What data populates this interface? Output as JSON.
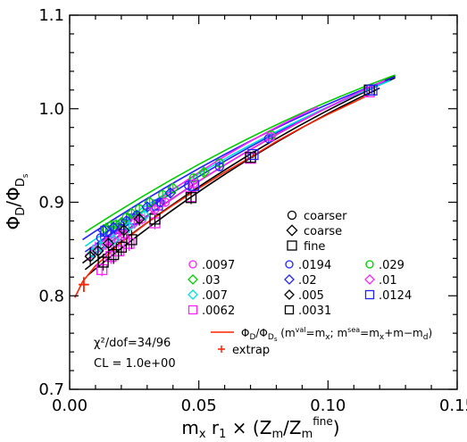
{
  "chart_data": {
    "type": "scatter",
    "xlabel": "m_x r_1 × (Z_m/Z_m^fine)",
    "ylabel": "Φ_D/Φ_Ds",
    "xlim": [
      0.0,
      0.15
    ],
    "ylim": [
      0.7,
      1.1
    ],
    "x_ticks": [
      "0.00",
      "0.05",
      "0.10",
      "0.15"
    ],
    "y_ticks": [
      "0.7",
      "0.8",
      "0.9",
      "1.0",
      "1.1"
    ],
    "ensemble_legend": [
      {
        "symbol": "circle",
        "label": "coarser"
      },
      {
        "symbol": "diamond",
        "label": "coarse"
      },
      {
        "symbol": "square",
        "label": "fine"
      }
    ],
    "mass_legend": [
      {
        "label": ".0097",
        "color": "#ff22ff",
        "symbol": "circle"
      },
      {
        "label": ".0194",
        "color": "#2222ff",
        "symbol": "circle"
      },
      {
        "label": ".029",
        "color": "#00cc00",
        "symbol": "circle"
      },
      {
        "label": ".03",
        "color": "#00cc00",
        "symbol": "diamond"
      },
      {
        "label": ".02",
        "color": "#2222ff",
        "symbol": "diamond"
      },
      {
        "label": ".01",
        "color": "#ff22ff",
        "symbol": "diamond"
      },
      {
        "label": ".007",
        "color": "#00dddd",
        "symbol": "diamond"
      },
      {
        "label": ".005",
        "color": "#000000",
        "symbol": "diamond"
      },
      {
        "label": ".0124",
        "color": "#2222ff",
        "symbol": "square"
      },
      {
        "label": ".0062",
        "color": "#ff22ff",
        "symbol": "square"
      },
      {
        "label": ".0031",
        "color": "#000000",
        "symbol": "square"
      }
    ],
    "physical_curve_label": "Φ_D/Φ_Ds (m^val=m_x; m^sea=m_x+m−m_d)",
    "physical_curve_color": "#ff2200",
    "extrap_label": "extrap",
    "extrap_point": {
      "x": 0.0055,
      "y": 0.812,
      "yerr": 0.008,
      "xerr": 0.002
    },
    "fit_annotation_1": "χ²/dof=34/96",
    "fit_annotation_2": "CL = 1.0e+00",
    "fit_curves": [
      {
        "color": "#000000",
        "x0": 0.005,
        "y0": 0.835,
        "x1": 0.126,
        "y1": 1.035
      },
      {
        "color": "#000000",
        "x0": 0.006,
        "y0": 0.828,
        "x1": 0.126,
        "y1": 1.033
      },
      {
        "color": "#000000",
        "x0": 0.007,
        "y0": 0.822,
        "x1": 0.12,
        "y1": 1.022
      },
      {
        "color": "#2222ff",
        "x0": 0.005,
        "y0": 0.86,
        "x1": 0.126,
        "y1": 1.034
      },
      {
        "color": "#2222ff",
        "x0": 0.006,
        "y0": 0.847,
        "x1": 0.122,
        "y1": 1.028
      },
      {
        "color": "#00cc00",
        "x0": 0.006,
        "y0": 0.868,
        "x1": 0.126,
        "y1": 1.036
      },
      {
        "color": "#00dddd",
        "x0": 0.006,
        "y0": 0.853,
        "x1": 0.124,
        "y1": 1.03
      },
      {
        "color": "#ff22ff",
        "x0": 0.006,
        "y0": 0.843,
        "x1": 0.096,
        "y1": 1.002
      },
      {
        "color": "#ff22ff",
        "x0": 0.007,
        "y0": 0.838,
        "x1": 0.122,
        "y1": 1.03
      }
    ],
    "physical_curve": [
      {
        "x": 0.002,
        "y": 0.798
      },
      {
        "x": 0.005,
        "y": 0.815
      },
      {
        "x": 0.01,
        "y": 0.832
      },
      {
        "x": 0.02,
        "y": 0.857
      },
      {
        "x": 0.03,
        "y": 0.878
      },
      {
        "x": 0.04,
        "y": 0.897
      },
      {
        "x": 0.05,
        "y": 0.915
      },
      {
        "x": 0.06,
        "y": 0.932
      },
      {
        "x": 0.07,
        "y": 0.948
      },
      {
        "x": 0.08,
        "y": 0.965
      },
      {
        "x": 0.09,
        "y": 0.98
      },
      {
        "x": 0.1,
        "y": 0.994
      },
      {
        "x": 0.11,
        "y": 1.007
      },
      {
        "x": 0.116,
        "y": 1.015
      }
    ],
    "points": [
      {
        "x": 0.0125,
        "y": 0.828,
        "err": 0.007,
        "color": "#ff22ff",
        "symbol": "square"
      },
      {
        "x": 0.016,
        "y": 0.842,
        "err": 0.008,
        "color": "#ff22ff",
        "symbol": "square"
      },
      {
        "x": 0.019,
        "y": 0.848,
        "err": 0.007,
        "color": "#ff22ff",
        "symbol": "square"
      },
      {
        "x": 0.023,
        "y": 0.856,
        "err": 0.008,
        "color": "#ff22ff",
        "symbol": "square"
      },
      {
        "x": 0.033,
        "y": 0.878,
        "err": 0.007,
        "color": "#ff22ff",
        "symbol": "square"
      },
      {
        "x": 0.047,
        "y": 0.906,
        "err": 0.006,
        "color": "#ff22ff",
        "symbol": "square"
      },
      {
        "x": 0.07,
        "y": 0.947,
        "err": 0.005,
        "color": "#ff22ff",
        "symbol": "square"
      },
      {
        "x": 0.116,
        "y": 1.018,
        "err": 0.004,
        "color": "#ff22ff",
        "symbol": "square"
      },
      {
        "x": 0.013,
        "y": 0.836,
        "err": 0.009,
        "color": "#000000",
        "symbol": "square"
      },
      {
        "x": 0.017,
        "y": 0.844,
        "err": 0.01,
        "color": "#000000",
        "symbol": "square"
      },
      {
        "x": 0.02,
        "y": 0.852,
        "err": 0.009,
        "color": "#000000",
        "symbol": "square"
      },
      {
        "x": 0.024,
        "y": 0.86,
        "err": 0.01,
        "color": "#000000",
        "symbol": "square"
      },
      {
        "x": 0.033,
        "y": 0.882,
        "err": 0.008,
        "color": "#000000",
        "symbol": "square"
      },
      {
        "x": 0.047,
        "y": 0.905,
        "err": 0.007,
        "color": "#000000",
        "symbol": "square"
      },
      {
        "x": 0.07,
        "y": 0.948,
        "err": 0.006,
        "color": "#000000",
        "symbol": "square"
      },
      {
        "x": 0.116,
        "y": 1.02,
        "err": 0.004,
        "color": "#000000",
        "symbol": "square"
      },
      {
        "x": 0.014,
        "y": 0.869,
        "err": 0.007,
        "color": "#2222ff",
        "symbol": "square"
      },
      {
        "x": 0.018,
        "y": 0.872,
        "err": 0.007,
        "color": "#2222ff",
        "symbol": "square"
      },
      {
        "x": 0.021,
        "y": 0.876,
        "err": 0.006,
        "color": "#2222ff",
        "symbol": "square"
      },
      {
        "x": 0.025,
        "y": 0.882,
        "err": 0.006,
        "color": "#2222ff",
        "symbol": "square"
      },
      {
        "x": 0.034,
        "y": 0.897,
        "err": 0.005,
        "color": "#2222ff",
        "symbol": "square"
      },
      {
        "x": 0.048,
        "y": 0.918,
        "err": 0.005,
        "color": "#2222ff",
        "symbol": "square"
      },
      {
        "x": 0.071,
        "y": 0.951,
        "err": 0.004,
        "color": "#2222ff",
        "symbol": "square"
      },
      {
        "x": 0.117,
        "y": 1.02,
        "err": 0.004,
        "color": "#2222ff",
        "symbol": "square"
      },
      {
        "x": 0.014,
        "y": 0.872,
        "err": 0.006,
        "color": "#00cc00",
        "symbol": "circle"
      },
      {
        "x": 0.018,
        "y": 0.876,
        "err": 0.006,
        "color": "#00cc00",
        "symbol": "circle"
      },
      {
        "x": 0.022,
        "y": 0.884,
        "err": 0.005,
        "color": "#00cc00",
        "symbol": "circle"
      },
      {
        "x": 0.027,
        "y": 0.893,
        "err": 0.005,
        "color": "#00cc00",
        "symbol": "circle"
      },
      {
        "x": 0.036,
        "y": 0.908,
        "err": 0.005,
        "color": "#00cc00",
        "symbol": "circle"
      },
      {
        "x": 0.048,
        "y": 0.926,
        "err": 0.004,
        "color": "#00cc00",
        "symbol": "circle"
      },
      {
        "x": 0.058,
        "y": 0.942,
        "err": 0.004,
        "color": "#00cc00",
        "symbol": "circle"
      },
      {
        "x": 0.078,
        "y": 0.972,
        "err": 0.004,
        "color": "#00cc00",
        "symbol": "circle"
      },
      {
        "x": 0.016,
        "y": 0.875,
        "err": 0.006,
        "color": "#00cc00",
        "symbol": "diamond"
      },
      {
        "x": 0.02,
        "y": 0.878,
        "err": 0.006,
        "color": "#00cc00",
        "symbol": "diamond"
      },
      {
        "x": 0.024,
        "y": 0.888,
        "err": 0.005,
        "color": "#00cc00",
        "symbol": "diamond"
      },
      {
        "x": 0.031,
        "y": 0.9,
        "err": 0.005,
        "color": "#00cc00",
        "symbol": "diamond"
      },
      {
        "x": 0.04,
        "y": 0.915,
        "err": 0.004,
        "color": "#00cc00",
        "symbol": "diamond"
      },
      {
        "x": 0.052,
        "y": 0.932,
        "err": 0.004,
        "color": "#00cc00",
        "symbol": "diamond"
      },
      {
        "x": 0.012,
        "y": 0.862,
        "err": 0.007,
        "color": "#2222ff",
        "symbol": "circle"
      },
      {
        "x": 0.016,
        "y": 0.866,
        "err": 0.007,
        "color": "#2222ff",
        "symbol": "circle"
      },
      {
        "x": 0.02,
        "y": 0.872,
        "err": 0.006,
        "color": "#2222ff",
        "symbol": "circle"
      },
      {
        "x": 0.026,
        "y": 0.886,
        "err": 0.006,
        "color": "#2222ff",
        "symbol": "circle"
      },
      {
        "x": 0.035,
        "y": 0.9,
        "err": 0.005,
        "color": "#2222ff",
        "symbol": "circle"
      },
      {
        "x": 0.046,
        "y": 0.918,
        "err": 0.005,
        "color": "#2222ff",
        "symbol": "circle"
      },
      {
        "x": 0.058,
        "y": 0.938,
        "err": 0.004,
        "color": "#2222ff",
        "symbol": "circle"
      },
      {
        "x": 0.077,
        "y": 0.968,
        "err": 0.004,
        "color": "#2222ff",
        "symbol": "circle"
      },
      {
        "x": 0.013,
        "y": 0.87,
        "err": 0.006,
        "color": "#2222ff",
        "symbol": "diamond"
      },
      {
        "x": 0.017,
        "y": 0.873,
        "err": 0.006,
        "color": "#2222ff",
        "symbol": "diamond"
      },
      {
        "x": 0.022,
        "y": 0.88,
        "err": 0.005,
        "color": "#2222ff",
        "symbol": "diamond"
      },
      {
        "x": 0.03,
        "y": 0.895,
        "err": 0.005,
        "color": "#2222ff",
        "symbol": "diamond"
      },
      {
        "x": 0.039,
        "y": 0.91,
        "err": 0.005,
        "color": "#2222ff",
        "symbol": "diamond"
      },
      {
        "x": 0.012,
        "y": 0.852,
        "err": 0.008,
        "color": "#ff22ff",
        "symbol": "circle"
      },
      {
        "x": 0.016,
        "y": 0.858,
        "err": 0.007,
        "color": "#ff22ff",
        "symbol": "circle"
      },
      {
        "x": 0.021,
        "y": 0.866,
        "err": 0.007,
        "color": "#ff22ff",
        "symbol": "circle"
      },
      {
        "x": 0.028,
        "y": 0.882,
        "err": 0.006,
        "color": "#ff22ff",
        "symbol": "circle"
      },
      {
        "x": 0.037,
        "y": 0.9,
        "err": 0.005,
        "color": "#ff22ff",
        "symbol": "circle"
      },
      {
        "x": 0.048,
        "y": 0.92,
        "err": 0.005,
        "color": "#ff22ff",
        "symbol": "circle"
      },
      {
        "x": 0.078,
        "y": 0.97,
        "err": 0.004,
        "color": "#ff22ff",
        "symbol": "circle"
      },
      {
        "x": 0.01,
        "y": 0.85,
        "err": 0.008,
        "color": "#ff22ff",
        "symbol": "diamond"
      },
      {
        "x": 0.014,
        "y": 0.856,
        "err": 0.007,
        "color": "#ff22ff",
        "symbol": "diamond"
      },
      {
        "x": 0.019,
        "y": 0.864,
        "err": 0.007,
        "color": "#ff22ff",
        "symbol": "diamond"
      },
      {
        "x": 0.025,
        "y": 0.878,
        "err": 0.006,
        "color": "#ff22ff",
        "symbol": "diamond"
      },
      {
        "x": 0.033,
        "y": 0.892,
        "err": 0.006,
        "color": "#ff22ff",
        "symbol": "diamond"
      },
      {
        "x": 0.009,
        "y": 0.846,
        "err": 0.009,
        "color": "#00dddd",
        "symbol": "diamond"
      },
      {
        "x": 0.012,
        "y": 0.853,
        "err": 0.008,
        "color": "#00dddd",
        "symbol": "diamond"
      },
      {
        "x": 0.017,
        "y": 0.86,
        "err": 0.007,
        "color": "#00dddd",
        "symbol": "diamond"
      },
      {
        "x": 0.023,
        "y": 0.874,
        "err": 0.007,
        "color": "#00dddd",
        "symbol": "diamond"
      },
      {
        "x": 0.029,
        "y": 0.886,
        "err": 0.006,
        "color": "#00dddd",
        "symbol": "diamond"
      },
      {
        "x": 0.008,
        "y": 0.842,
        "err": 0.01,
        "color": "#000000",
        "symbol": "diamond"
      },
      {
        "x": 0.011,
        "y": 0.848,
        "err": 0.009,
        "color": "#000000",
        "symbol": "diamond"
      },
      {
        "x": 0.015,
        "y": 0.856,
        "err": 0.008,
        "color": "#000000",
        "symbol": "diamond"
      },
      {
        "x": 0.021,
        "y": 0.87,
        "err": 0.008,
        "color": "#000000",
        "symbol": "diamond"
      },
      {
        "x": 0.027,
        "y": 0.882,
        "err": 0.007,
        "color": "#000000",
        "symbol": "diamond"
      }
    ]
  }
}
